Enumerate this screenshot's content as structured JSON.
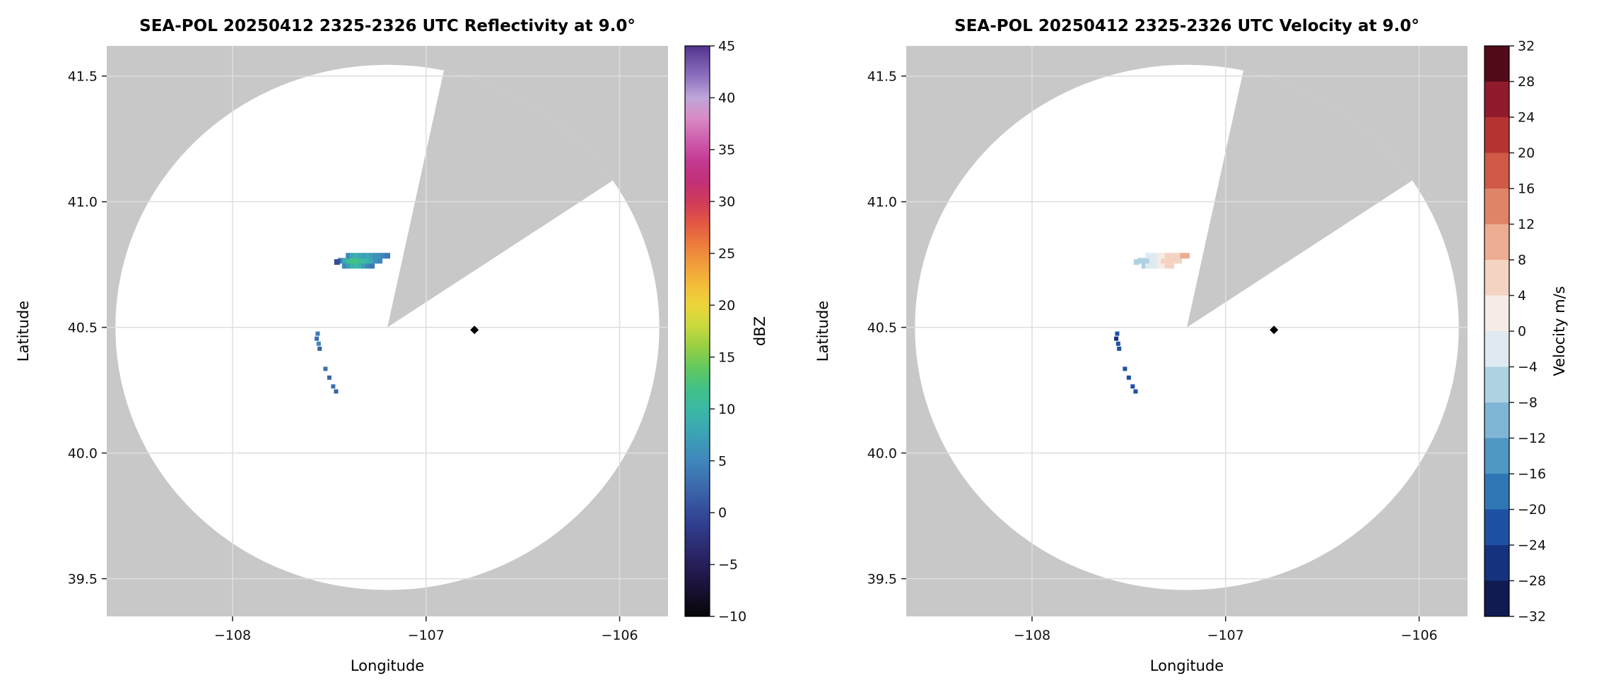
{
  "figure": {
    "background": "#ffffff"
  },
  "chart_data": [
    {
      "type": "scatter",
      "panel": "reflectivity",
      "title": "SEA-POL 20250412 2325-2326 UTC Reflectivity at 9.0°",
      "xlabel": "Longitude",
      "ylabel": "Latitude",
      "xlim": [
        -108.65,
        -105.75
      ],
      "ylim": [
        39.35,
        41.62
      ],
      "xticks": [
        -108,
        -107,
        -106
      ],
      "yticks": [
        39.5,
        40.0,
        40.5,
        41.0,
        41.5
      ],
      "grid": true,
      "plot_bg": "#c8c8c8",
      "grid_color": "#dedede",
      "coverage_circle": {
        "center": [
          -107.2,
          40.5
        ],
        "rx_deg": 1.405,
        "ry_deg": 1.045,
        "fill": "#ffffff",
        "missing_sector_az_deg": [
          12,
          56
        ]
      },
      "radar_marker": {
        "x": -106.75,
        "y": 40.49,
        "symbol": "diamond",
        "color": "#000000"
      },
      "colorbar": {
        "label": "dBZ",
        "vmin": -10,
        "vmax": 45,
        "ticks": [
          -10,
          -5,
          0,
          5,
          10,
          15,
          20,
          25,
          30,
          35,
          40,
          45
        ],
        "stops": [
          [
            -10,
            "#060606"
          ],
          [
            -7,
            "#1c123b"
          ],
          [
            -4,
            "#2a2668"
          ],
          [
            -1,
            "#313f8f"
          ],
          [
            2,
            "#3a63a9"
          ],
          [
            5,
            "#3f86bb"
          ],
          [
            8,
            "#3ca7b4"
          ],
          [
            10,
            "#3ab9a4"
          ],
          [
            12,
            "#42c186"
          ],
          [
            14,
            "#63c95e"
          ],
          [
            16,
            "#97cf43"
          ],
          [
            18,
            "#c9da3e"
          ],
          [
            20,
            "#ecd53a"
          ],
          [
            22,
            "#f2bc3a"
          ],
          [
            24,
            "#f19c3b"
          ],
          [
            26,
            "#ec7a3d"
          ],
          [
            28,
            "#e25544"
          ],
          [
            30,
            "#d03a5b"
          ],
          [
            32,
            "#c13079"
          ],
          [
            34,
            "#c43b92"
          ],
          [
            36,
            "#cf5fad"
          ],
          [
            38,
            "#d98ac4"
          ],
          [
            40,
            "#bfa6d9"
          ],
          [
            42,
            "#9071c0"
          ],
          [
            45,
            "#52348f"
          ]
        ]
      },
      "point_units": "dBZ",
      "points": [
        [
          -107.42,
          40.745,
          5
        ],
        [
          -107.4,
          40.745,
          7
        ],
        [
          -107.38,
          40.745,
          9
        ],
        [
          -107.36,
          40.745,
          10
        ],
        [
          -107.34,
          40.745,
          9
        ],
        [
          -107.32,
          40.745,
          7
        ],
        [
          -107.3,
          40.745,
          5
        ],
        [
          -107.28,
          40.745,
          4
        ],
        [
          -107.44,
          40.765,
          4
        ],
        [
          -107.42,
          40.765,
          8
        ],
        [
          -107.4,
          40.765,
          11
        ],
        [
          -107.38,
          40.765,
          12
        ],
        [
          -107.36,
          40.765,
          12
        ],
        [
          -107.34,
          40.765,
          11
        ],
        [
          -107.32,
          40.765,
          10
        ],
        [
          -107.3,
          40.765,
          9
        ],
        [
          -107.28,
          40.765,
          8
        ],
        [
          -107.26,
          40.765,
          6
        ],
        [
          -107.24,
          40.765,
          5
        ],
        [
          -107.4,
          40.785,
          5
        ],
        [
          -107.38,
          40.785,
          8
        ],
        [
          -107.36,
          40.785,
          9
        ],
        [
          -107.34,
          40.785,
          8
        ],
        [
          -107.32,
          40.785,
          7
        ],
        [
          -107.3,
          40.785,
          8
        ],
        [
          -107.28,
          40.785,
          7
        ],
        [
          -107.26,
          40.785,
          6
        ],
        [
          -107.24,
          40.785,
          6
        ],
        [
          -107.22,
          40.785,
          5
        ],
        [
          -107.2,
          40.785,
          4
        ],
        [
          -107.46,
          40.76,
          0
        ],
        [
          -107.56,
          40.475,
          4,
          6
        ],
        [
          -107.565,
          40.455,
          3,
          6
        ],
        [
          -107.555,
          40.435,
          5,
          6
        ],
        [
          -107.55,
          40.415,
          2,
          6
        ],
        [
          -107.52,
          40.335,
          3,
          6
        ],
        [
          -107.5,
          40.3,
          2,
          6
        ],
        [
          -107.48,
          40.265,
          3,
          6
        ],
        [
          -107.465,
          40.245,
          2,
          6
        ]
      ]
    },
    {
      "type": "scatter",
      "panel": "velocity",
      "title": "SEA-POL 20250412 2325-2326 UTC Velocity at 9.0°",
      "xlabel": "Longitude",
      "ylabel": "Latitude",
      "xlim": [
        -108.65,
        -105.75
      ],
      "ylim": [
        39.35,
        41.62
      ],
      "xticks": [
        -108,
        -107,
        -106
      ],
      "yticks": [
        39.5,
        40.0,
        40.5,
        41.0,
        41.5
      ],
      "grid": true,
      "plot_bg": "#c8c8c8",
      "grid_color": "#dedede",
      "coverage_circle": {
        "center": [
          -107.2,
          40.5
        ],
        "rx_deg": 1.405,
        "ry_deg": 1.045,
        "fill": "#ffffff",
        "missing_sector_az_deg": [
          12,
          56
        ]
      },
      "radar_marker": {
        "x": -106.75,
        "y": 40.49,
        "symbol": "diamond",
        "color": "#000000"
      },
      "colorbar": {
        "label": "Velocity m/s",
        "vmin": -32,
        "vmax": 32,
        "ticks": [
          -32,
          -28,
          -24,
          -20,
          -16,
          -12,
          -8,
          -4,
          0,
          4,
          8,
          12,
          16,
          20,
          24,
          28,
          32
        ],
        "bin_edges": [
          -32,
          -28,
          -24,
          -20,
          -16,
          -12,
          -8,
          -4,
          0,
          4,
          8,
          12,
          16,
          20,
          24,
          28,
          32
        ],
        "bin_colors": [
          "#101b52",
          "#16327f",
          "#1e51a2",
          "#2f76b5",
          "#4f97c5",
          "#7fb6d5",
          "#afd2e3",
          "#dfeaf0",
          "#f5ece7",
          "#f4d3c3",
          "#edad92",
          "#e08467",
          "#cf5a47",
          "#b43432",
          "#911b2c",
          "#520a18"
        ]
      },
      "point_units": "m/s",
      "points": [
        [
          -107.42,
          40.745,
          -5
        ],
        [
          -107.4,
          40.745,
          -4
        ],
        [
          -107.38,
          40.745,
          -3
        ],
        [
          -107.36,
          40.745,
          -2
        ],
        [
          -107.34,
          40.745,
          2
        ],
        [
          -107.32,
          40.745,
          3
        ],
        [
          -107.3,
          40.745,
          4
        ],
        [
          -107.28,
          40.745,
          5
        ],
        [
          -107.44,
          40.765,
          -7
        ],
        [
          -107.42,
          40.765,
          -6
        ],
        [
          -107.4,
          40.765,
          -5
        ],
        [
          -107.38,
          40.765,
          -4
        ],
        [
          -107.36,
          40.765,
          -2
        ],
        [
          -107.34,
          40.765,
          2
        ],
        [
          -107.32,
          40.765,
          4
        ],
        [
          -107.3,
          40.765,
          5
        ],
        [
          -107.28,
          40.765,
          6
        ],
        [
          -107.26,
          40.765,
          7
        ],
        [
          -107.24,
          40.765,
          7
        ],
        [
          -107.4,
          40.785,
          -4
        ],
        [
          -107.38,
          40.785,
          -3
        ],
        [
          -107.36,
          40.785,
          -2
        ],
        [
          -107.34,
          40.785,
          2
        ],
        [
          -107.32,
          40.785,
          3
        ],
        [
          -107.3,
          40.785,
          5
        ],
        [
          -107.28,
          40.785,
          6
        ],
        [
          -107.26,
          40.785,
          6
        ],
        [
          -107.24,
          40.785,
          7
        ],
        [
          -107.22,
          40.785,
          8
        ],
        [
          -107.2,
          40.785,
          8
        ],
        [
          -107.46,
          40.76,
          -8
        ],
        [
          -107.56,
          40.475,
          -22,
          6
        ],
        [
          -107.565,
          40.455,
          -26,
          6
        ],
        [
          -107.555,
          40.435,
          -22,
          6
        ],
        [
          -107.55,
          40.415,
          -24,
          6
        ],
        [
          -107.52,
          40.335,
          -22,
          6
        ],
        [
          -107.5,
          40.3,
          -24,
          6
        ],
        [
          -107.48,
          40.265,
          -22,
          6
        ],
        [
          -107.465,
          40.245,
          -24,
          6
        ]
      ]
    }
  ]
}
